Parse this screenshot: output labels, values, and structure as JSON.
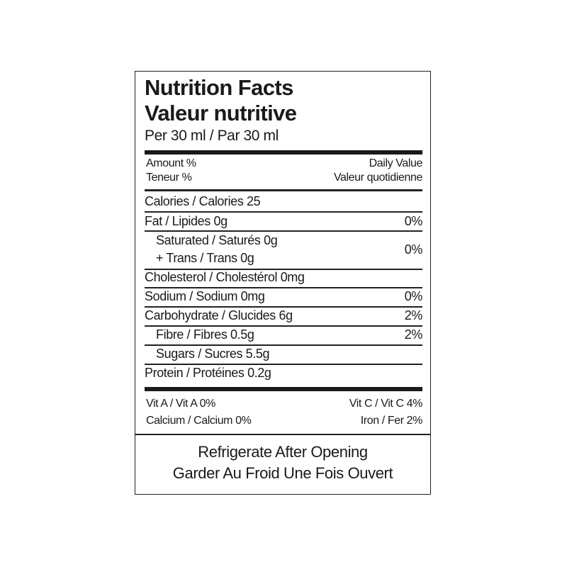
{
  "title_en": "Nutrition Facts",
  "title_fr": "Valeur nutritive",
  "serving": "Per 30 ml / Par 30 ml",
  "header": {
    "amount": "Amount %",
    "teneur": "Teneur %",
    "daily_value": "Daily Value",
    "valeur_quotidienne": "Valeur quotidienne"
  },
  "rows": [
    {
      "label": "Calories / Calories 25",
      "dv": ""
    },
    {
      "label": "Fat / Lipides 0g",
      "dv": "0%"
    },
    {
      "label": "Saturated / Saturés 0g",
      "label2": "+ Trans / Trans 0g",
      "dv": "0%"
    },
    {
      "label": "Cholesterol / Cholestérol 0mg",
      "dv": ""
    },
    {
      "label": "Sodium / Sodium 0mg",
      "dv": "0%"
    },
    {
      "label": "Carbohydrate / Glucides 6g",
      "dv": "2%"
    },
    {
      "label": "Fibre / Fibres 0.5g",
      "dv": "2%"
    },
    {
      "label": "Sugars / Sucres 5.5g",
      "dv": ""
    },
    {
      "label": "Protein / Protéines 0.2g",
      "dv": ""
    }
  ],
  "vitamins": {
    "vit_a": "Vit A / Vit A 0%",
    "vit_c": "Vit C / Vit C 4%",
    "calcium": "Calcium / Calcium 0%",
    "iron": "Iron / Fer 2%"
  },
  "note": {
    "en": "Refrigerate After Opening",
    "fr": "Garder Au Froid Une Fois Ouvert"
  }
}
